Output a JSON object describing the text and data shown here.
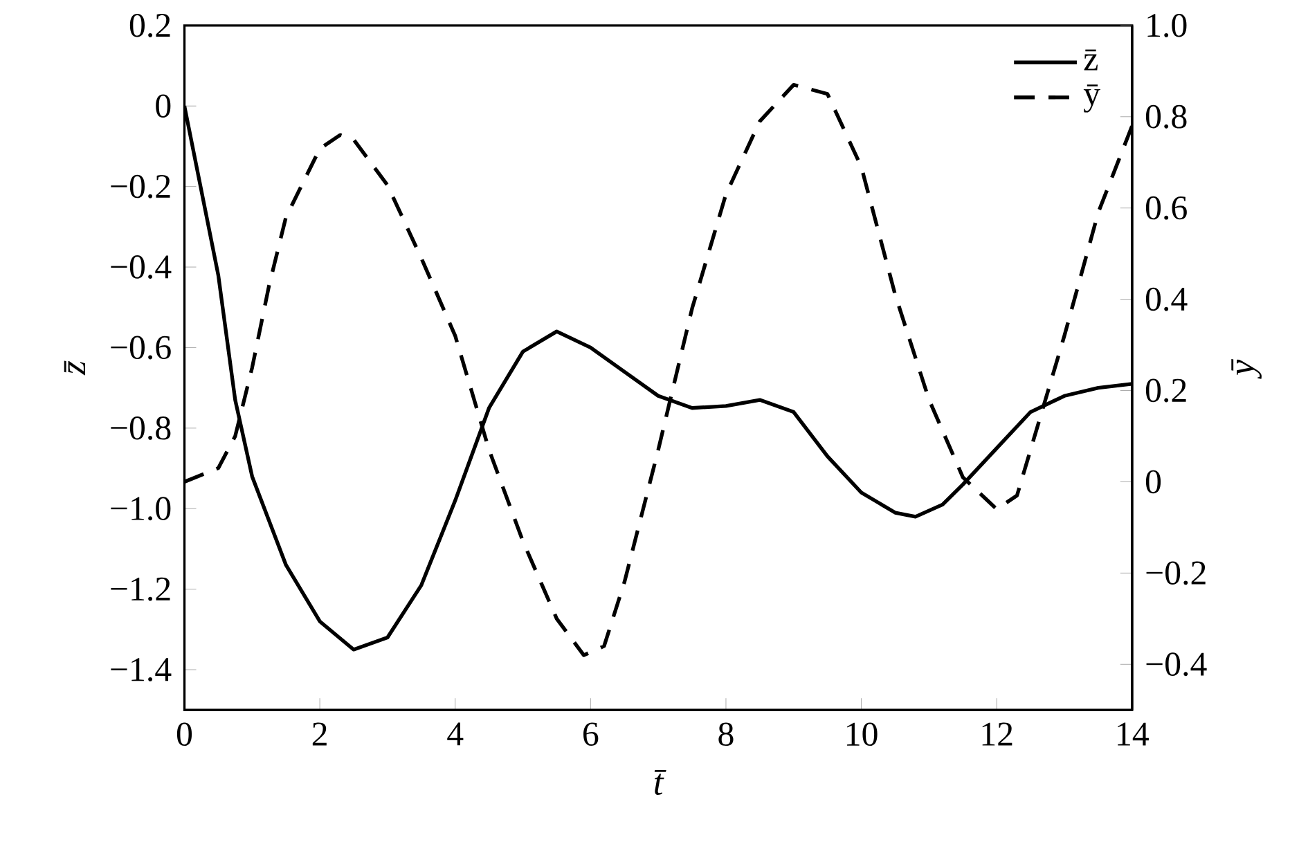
{
  "chart_data": {
    "type": "line",
    "xlabel": "t̄",
    "ylabel": "z̄",
    "y2label": "ȳ",
    "xlim": [
      0,
      14
    ],
    "xticks": [
      0,
      2,
      4,
      6,
      8,
      10,
      12,
      14
    ],
    "ylim": [
      -1.5,
      0.2
    ],
    "yticks": [
      {
        "value": 0.2,
        "label": "0.2"
      },
      {
        "value": 0,
        "label": "0"
      },
      {
        "value": -0.2,
        "label": "−0.2"
      },
      {
        "value": -0.4,
        "label": "−0.4"
      },
      {
        "value": -0.6,
        "label": "−0.6"
      },
      {
        "value": -0.8,
        "label": "−0.8"
      },
      {
        "value": -1.0,
        "label": "−1.0"
      },
      {
        "value": -1.2,
        "label": "−1.2"
      },
      {
        "value": -1.4,
        "label": "−1.4"
      }
    ],
    "y2lim": [
      -0.5,
      1.0
    ],
    "y2ticks": [
      {
        "value": 1.0,
        "label": "1.0"
      },
      {
        "value": 0.8,
        "label": "0.8"
      },
      {
        "value": 0.6,
        "label": "0.6"
      },
      {
        "value": 0.4,
        "label": "0.4"
      },
      {
        "value": 0.2,
        "label": "0.2"
      },
      {
        "value": 0,
        "label": "0"
      },
      {
        "value": -0.2,
        "label": "−0.2"
      },
      {
        "value": -0.4,
        "label": "−0.4"
      }
    ],
    "legend": "top right",
    "grid": false,
    "series": [
      {
        "name": "z̄",
        "color": "#000000",
        "line_style": "solid",
        "axis": "y",
        "x": [
          0,
          0.5,
          0.75,
          1,
          1.5,
          2,
          2.5,
          3,
          3.5,
          4,
          4.5,
          5,
          5.5,
          6,
          6.5,
          7,
          7.5,
          8,
          8.5,
          9,
          9.5,
          10,
          10.5,
          10.8,
          11.2,
          11.5,
          12,
          12.5,
          13,
          13.5,
          14
        ],
        "values": [
          0,
          -0.42,
          -0.73,
          -0.92,
          -1.14,
          -1.28,
          -1.35,
          -1.32,
          -1.19,
          -0.98,
          -0.75,
          -0.61,
          -0.56,
          -0.6,
          -0.66,
          -0.72,
          -0.75,
          -0.745,
          -0.73,
          -0.76,
          -0.87,
          -0.96,
          -1.01,
          -1.02,
          -0.99,
          -0.94,
          -0.85,
          -0.76,
          -0.72,
          -0.7,
          -0.69
        ]
      },
      {
        "name": "ȳ",
        "color": "#000000",
        "line_style": "dashed",
        "axis": "y2",
        "x": [
          0,
          0.5,
          0.75,
          1,
          1.25,
          1.5,
          2,
          2.3,
          2.5,
          3,
          3.5,
          4,
          4.5,
          5,
          5.5,
          5.9,
          6.2,
          6.5,
          7,
          7.5,
          8,
          8.5,
          9,
          9.5,
          10,
          10.5,
          11,
          11.5,
          12,
          12.3,
          12.5,
          13,
          13.5,
          14
        ],
        "values": [
          0,
          0.03,
          0.1,
          0.25,
          0.43,
          0.58,
          0.73,
          0.76,
          0.75,
          0.65,
          0.49,
          0.32,
          0.07,
          -0.13,
          -0.3,
          -0.38,
          -0.36,
          -0.22,
          0.07,
          0.38,
          0.63,
          0.79,
          0.87,
          0.85,
          0.69,
          0.41,
          0.18,
          0.01,
          -0.06,
          -0.03,
          0.07,
          0.32,
          0.59,
          0.78
        ]
      }
    ]
  }
}
